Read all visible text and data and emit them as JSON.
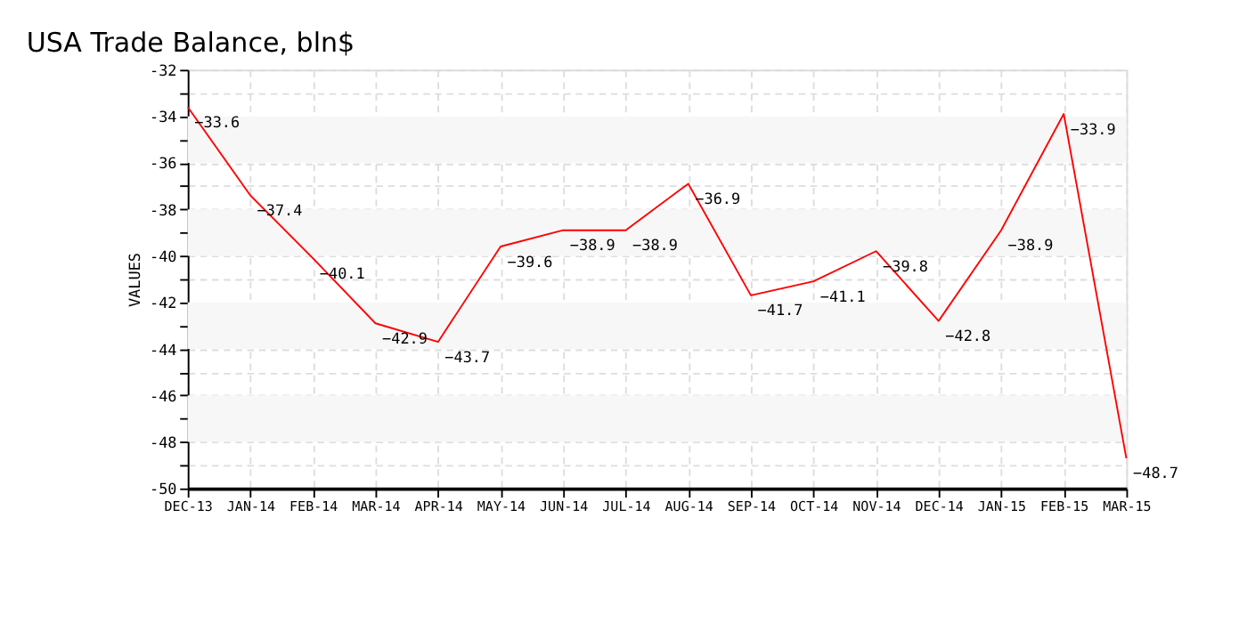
{
  "chart_data": {
    "type": "line",
    "title": "USA Trade Balance, bln$",
    "ylabel": "VALUES",
    "categories": [
      "DEC-13",
      "JAN-14",
      "FEB-14",
      "MAR-14",
      "APR-14",
      "MAY-14",
      "JUN-14",
      "JUL-14",
      "AUG-14",
      "SEP-14",
      "OCT-14",
      "NOV-14",
      "DEC-14",
      "JAN-15",
      "FEB-15",
      "MAR-15"
    ],
    "series": [
      {
        "color": "#ff0000",
        "values": [
          -33.6,
          -37.4,
          -40.1,
          -42.9,
          -43.7,
          -39.6,
          -38.9,
          -38.9,
          -36.9,
          -41.7,
          -41.1,
          -39.8,
          -42.8,
          -38.9,
          -33.9,
          -48.7
        ]
      }
    ],
    "ylim": [
      -50,
      -32
    ],
    "yticks": [
      -50,
      {
        "value": -49,
        "label": null
      },
      -48,
      {
        "value": -47,
        "label": null
      },
      -46,
      {
        "value": -45,
        "label": null
      },
      -44,
      {
        "value": -43,
        "label": null
      },
      -42,
      {
        "value": -41,
        "label": null
      },
      -40,
      {
        "value": -39,
        "label": null
      },
      -38,
      {
        "value": -37,
        "label": null
      },
      -36,
      {
        "value": -35,
        "label": null
      },
      -34,
      {
        "value": -33,
        "label": null
      },
      -32
    ],
    "bands": [
      {
        "axis": "y",
        "from": -36,
        "to": -34,
        "color": "#f7f7f7"
      },
      {
        "axis": "y",
        "from": -40,
        "to": -38,
        "color": "#f7f7f7"
      },
      {
        "axis": "y",
        "from": -44,
        "to": -42,
        "color": "#f7f7f7"
      },
      {
        "axis": "y",
        "from": -48,
        "to": -46,
        "color": "#f7f7f7"
      }
    ],
    "grid": true,
    "data_labels": true,
    "marker": "none",
    "line_style": "solid"
  }
}
